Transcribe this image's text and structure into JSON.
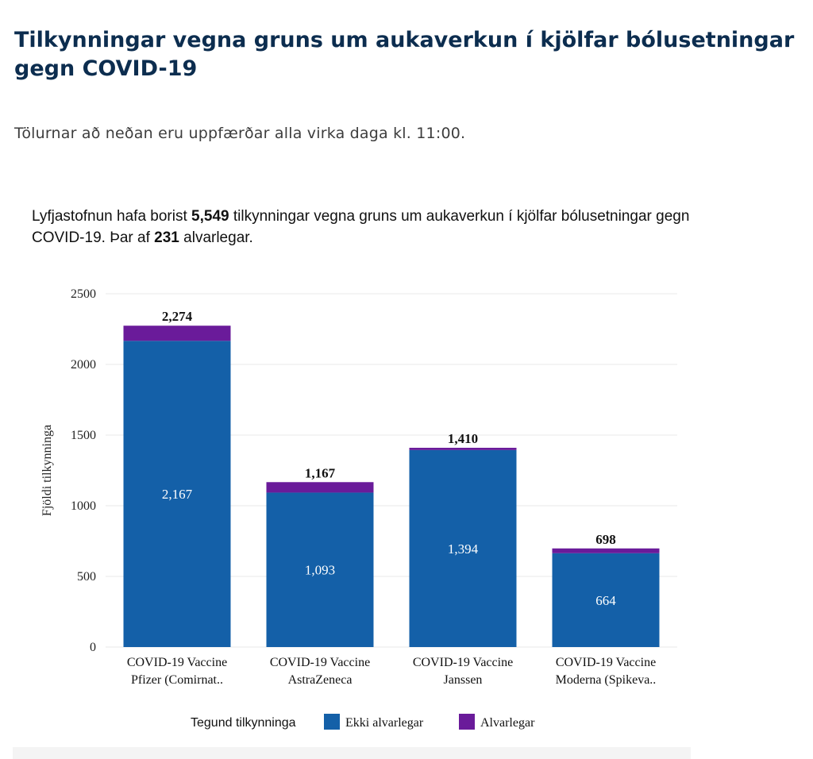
{
  "header": {
    "title": "Tilkynningar vegna gruns um aukaverkun í kjölfar bólusetningar gegn COVID-19",
    "subtitle": "Tölurnar að neðan eru uppfærðar alla virka daga kl. 11:00."
  },
  "summary": {
    "text_before_total": "Lyfjastofnun hafa borist ",
    "total": "5,549",
    "text_mid": " tilkynningar vegna gruns um aukaverkun í kjölfar bólusetningar gegn COVID-19. Þar af ",
    "serious": "231",
    "text_after": " alvarlegar."
  },
  "chart_data": {
    "type": "bar",
    "stacked": true,
    "categories": [
      [
        "COVID-19 Vaccine",
        "Pfizer (Comirnat.."
      ],
      [
        "COVID-19 Vaccine",
        "AstraZeneca"
      ],
      [
        "COVID-19 Vaccine",
        "Janssen"
      ],
      [
        "COVID-19 Vaccine",
        "Moderna (Spikeva.."
      ]
    ],
    "series": [
      {
        "name": "Ekki alvarlegar",
        "color": "#1460a8",
        "values": [
          2167,
          1093,
          1394,
          664
        ],
        "labels": [
          "2,167",
          "1,093",
          "1,394",
          "664"
        ]
      },
      {
        "name": "Alvarlegar",
        "color": "#6a1b9a",
        "values": [
          107,
          74,
          16,
          34
        ]
      }
    ],
    "totals": [
      2274,
      1167,
      1410,
      698
    ],
    "total_labels": [
      "2,274",
      "1,167",
      "1,410",
      "698"
    ],
    "ylabel": "Fjöldi tilkynninga",
    "ylim": [
      0,
      2500
    ],
    "yticks": [
      0,
      500,
      1000,
      1500,
      2000,
      2500
    ],
    "grid": true,
    "legend_title": "Tegund tilkynninga",
    "legend_position": "bottom"
  }
}
